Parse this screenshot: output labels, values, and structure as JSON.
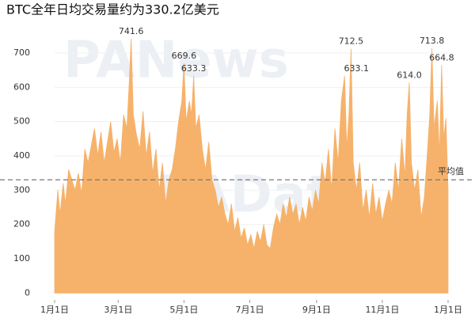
{
  "chart_data": {
    "type": "area",
    "title": "BTC全年日均交易量约为330.2亿美元",
    "watermarks": [
      "PANews",
      "PAData"
    ],
    "color": "#f6b26b",
    "grid": true,
    "xlim": [
      0,
      365
    ],
    "xticks": [
      {
        "value": 0,
        "label": "1月1日"
      },
      {
        "value": 59,
        "label": "3月1日"
      },
      {
        "value": 120,
        "label": "5月1日"
      },
      {
        "value": 181,
        "label": "7月1日"
      },
      {
        "value": 243,
        "label": "9月1日"
      },
      {
        "value": 304,
        "label": "11月1日"
      },
      {
        "value": 365,
        "label": "1月1日"
      }
    ],
    "ylim": [
      -20,
      760
    ],
    "yticks": [
      0,
      100,
      200,
      300,
      400,
      500,
      600,
      700
    ],
    "average": {
      "value": 330.2,
      "label": "平均值"
    },
    "annotations": [
      {
        "x": 71,
        "value": 741.6,
        "label": "741.6"
      },
      {
        "x": 120,
        "value": 669.6,
        "label": "669.6"
      },
      {
        "x": 129,
        "value": 633.3,
        "label": "633.3"
      },
      {
        "x": 275,
        "value": 712.5,
        "label": "712.5"
      },
      {
        "x": 269,
        "value": 633.1,
        "label": "633.1"
      },
      {
        "x": 329,
        "value": 614.0,
        "label": "614.0"
      },
      {
        "x": 350,
        "value": 713.8,
        "label": "713.8"
      },
      {
        "x": 359,
        "value": 664.8,
        "label": "664.8"
      }
    ],
    "x": [
      0,
      3,
      5,
      8,
      10,
      13,
      16,
      19,
      22,
      25,
      28,
      31,
      34,
      37,
      40,
      43,
      46,
      49,
      52,
      55,
      58,
      61,
      64,
      67,
      69,
      71,
      73,
      76,
      79,
      82,
      85,
      88,
      91,
      94,
      97,
      100,
      103,
      106,
      109,
      112,
      115,
      118,
      120,
      122,
      125,
      127,
      129,
      131,
      134,
      137,
      140,
      143,
      146,
      149,
      152,
      155,
      158,
      161,
      164,
      167,
      170,
      173,
      176,
      179,
      182,
      185,
      188,
      191,
      194,
      197,
      200,
      203,
      206,
      209,
      212,
      215,
      218,
      221,
      224,
      227,
      230,
      233,
      236,
      239,
      242,
      245,
      248,
      251,
      254,
      257,
      260,
      263,
      266,
      269,
      271,
      273,
      275,
      277,
      280,
      283,
      286,
      289,
      292,
      295,
      298,
      301,
      304,
      307,
      310,
      313,
      316,
      319,
      322,
      325,
      327,
      329,
      331,
      334,
      337,
      340,
      343,
      346,
      348,
      350,
      352,
      355,
      357,
      359,
      361,
      363,
      365
    ],
    "values": [
      180,
      300,
      230,
      320,
      260,
      360,
      330,
      300,
      350,
      290,
      420,
      380,
      430,
      480,
      400,
      470,
      380,
      440,
      500,
      410,
      450,
      380,
      520,
      480,
      600,
      741.6,
      520,
      460,
      420,
      530,
      400,
      470,
      350,
      420,
      300,
      380,
      260,
      330,
      360,
      420,
      500,
      560,
      669.6,
      500,
      560,
      520,
      633.3,
      480,
      520,
      420,
      360,
      440,
      330,
      300,
      250,
      280,
      230,
      200,
      260,
      180,
      220,
      160,
      190,
      140,
      170,
      130,
      180,
      150,
      200,
      140,
      130,
      190,
      230,
      200,
      260,
      220,
      280,
      230,
      260,
      200,
      250,
      210,
      280,
      240,
      300,
      260,
      380,
      320,
      420,
      300,
      480,
      380,
      560,
      633.1,
      420,
      520,
      712.5,
      380,
      300,
      380,
      240,
      300,
      220,
      320,
      230,
      280,
      210,
      260,
      300,
      260,
      380,
      300,
      450,
      340,
      520,
      614,
      380,
      300,
      360,
      220,
      280,
      420,
      520,
      713.8,
      480,
      560,
      400,
      664.8,
      450,
      510,
      300
    ]
  }
}
